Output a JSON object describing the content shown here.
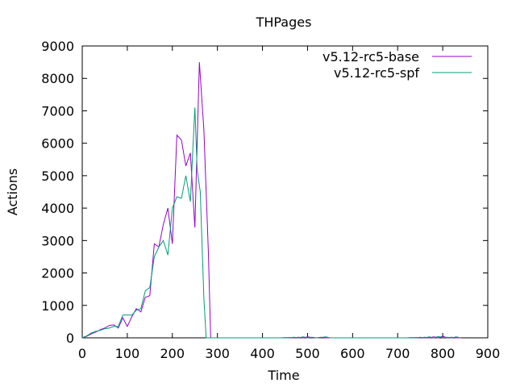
{
  "chart_data": {
    "type": "line",
    "title": "THPages",
    "xlabel": "Time",
    "ylabel": "Actions",
    "xlim": [
      0,
      900
    ],
    "ylim": [
      0,
      9000
    ],
    "xticks": [
      0,
      100,
      200,
      300,
      400,
      500,
      600,
      700,
      800,
      900
    ],
    "yticks": [
      0,
      1000,
      2000,
      3000,
      4000,
      5000,
      6000,
      7000,
      8000,
      9000
    ],
    "grid": false,
    "legend_position": "top-right",
    "series": [
      {
        "name": "v5.12-rc5-base",
        "color": "#9400d3",
        "x": [
          0,
          10,
          20,
          30,
          40,
          50,
          60,
          70,
          80,
          90,
          100,
          110,
          120,
          130,
          140,
          150,
          160,
          170,
          180,
          190,
          200,
          210,
          220,
          230,
          240,
          250,
          260,
          270,
          280,
          285,
          440,
          450,
          460,
          470,
          480,
          490,
          500,
          510,
          520,
          530,
          540,
          550,
          720,
          730,
          740,
          750,
          760,
          770,
          780,
          790,
          800,
          810,
          820,
          830,
          840
        ],
        "y": [
          0,
          50,
          120,
          180,
          250,
          300,
          380,
          400,
          300,
          620,
          350,
          650,
          900,
          800,
          1250,
          1300,
          2900,
          2800,
          3500,
          4000,
          2900,
          6250,
          6100,
          5300,
          5700,
          3400,
          8500,
          6400,
          2600,
          0,
          0,
          0,
          10,
          0,
          20,
          0,
          30,
          10,
          0,
          20,
          0,
          0,
          0,
          0,
          10,
          0,
          20,
          0,
          30,
          0,
          50,
          0,
          20,
          0,
          0
        ]
      },
      {
        "name": "v5.12-rc5-spf",
        "color": "#009e73",
        "x": [
          0,
          10,
          20,
          30,
          40,
          50,
          60,
          70,
          80,
          90,
          100,
          110,
          120,
          130,
          140,
          150,
          160,
          170,
          180,
          190,
          200,
          210,
          220,
          230,
          240,
          250,
          255,
          262,
          270,
          275,
          440,
          450,
          460,
          470,
          480,
          490,
          500,
          510,
          520,
          530,
          540,
          550,
          720,
          730,
          740,
          750,
          760,
          770,
          780,
          790,
          800,
          810,
          820,
          830,
          840
        ],
        "y": [
          0,
          60,
          150,
          200,
          230,
          280,
          300,
          350,
          350,
          700,
          700,
          700,
          850,
          900,
          1450,
          1550,
          2500,
          2800,
          3000,
          2550,
          4000,
          4350,
          4300,
          5000,
          4200,
          7100,
          5200,
          4500,
          1200,
          0,
          0,
          10,
          0,
          20,
          0,
          30,
          0,
          20,
          0,
          10,
          30,
          0,
          0,
          10,
          0,
          20,
          0,
          30,
          0,
          40,
          10,
          20,
          0,
          30,
          0
        ]
      }
    ]
  }
}
